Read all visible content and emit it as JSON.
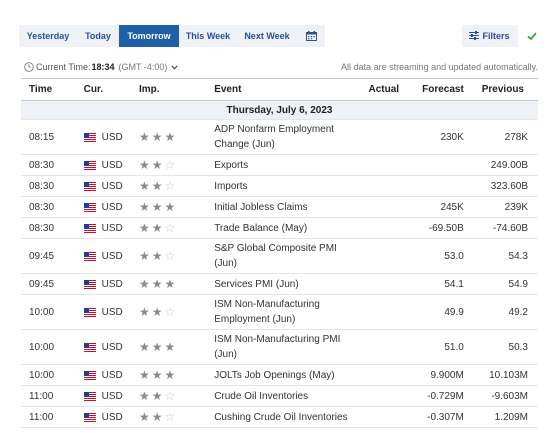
{
  "tabs": [
    {
      "label": "Yesterday",
      "active": false
    },
    {
      "label": "Today",
      "active": false
    },
    {
      "label": "Tomorrow",
      "active": true
    },
    {
      "label": "This Week",
      "active": false
    },
    {
      "label": "Next Week",
      "active": false
    }
  ],
  "calendar_icon": "calendar-icon",
  "filters_label": "Filters",
  "filters_icon": "sliders-icon",
  "check_icon": "checkmark-icon",
  "time_bar": {
    "label": "Current Time:",
    "value": "18:34",
    "timezone": "(GMT -4:00)",
    "streaming_note": "All data are streaming and updated automatically."
  },
  "columns": {
    "time": "Time",
    "cur": "Cur.",
    "imp": "Imp.",
    "event": "Event",
    "actual": "Actual",
    "forecast": "Forecast",
    "previous": "Previous"
  },
  "day_label": "Thursday, July 6, 2023",
  "colors": {
    "accent": "#1d5fa8",
    "tab_bg": "#eef1f5",
    "star_on": "#8a8a8a",
    "star_off": "#c8c8c8",
    "check": "#3aa83a"
  },
  "events": [
    {
      "time": "08:15",
      "currency": "USD",
      "importance": 3,
      "event": "ADP Nonfarm Employment Change (Jun)",
      "actual": "",
      "forecast": "230K",
      "previous": "278K",
      "double": true
    },
    {
      "time": "08:30",
      "currency": "USD",
      "importance": 2,
      "event": "Exports",
      "actual": "",
      "forecast": "",
      "previous": "249.00B",
      "double": false
    },
    {
      "time": "08:30",
      "currency": "USD",
      "importance": 2,
      "event": "Imports",
      "actual": "",
      "forecast": "",
      "previous": "323.60B",
      "double": false
    },
    {
      "time": "08:30",
      "currency": "USD",
      "importance": 3,
      "event": "Initial Jobless Claims",
      "actual": "",
      "forecast": "245K",
      "previous": "239K",
      "double": false
    },
    {
      "time": "08:30",
      "currency": "USD",
      "importance": 2,
      "event": "Trade Balance (May)",
      "actual": "",
      "forecast": "-69.50B",
      "previous": "-74.60B",
      "double": false
    },
    {
      "time": "09:45",
      "currency": "USD",
      "importance": 2,
      "event": "S&P Global Composite PMI (Jun)",
      "actual": "",
      "forecast": "53.0",
      "previous": "54.3",
      "double": true
    },
    {
      "time": "09:45",
      "currency": "USD",
      "importance": 3,
      "event": "Services PMI (Jun)",
      "actual": "",
      "forecast": "54.1",
      "previous": "54.9",
      "double": false
    },
    {
      "time": "10:00",
      "currency": "USD",
      "importance": 2,
      "event": "ISM Non-Manufacturing Employment (Jun)",
      "actual": "",
      "forecast": "49.9",
      "previous": "49.2",
      "double": true
    },
    {
      "time": "10:00",
      "currency": "USD",
      "importance": 3,
      "event": "ISM Non-Manufacturing PMI (Jun)",
      "actual": "",
      "forecast": "51.0",
      "previous": "50.3",
      "double": true
    },
    {
      "time": "10:00",
      "currency": "USD",
      "importance": 3,
      "event": "JOLTs Job Openings (May)",
      "actual": "",
      "forecast": "9.900M",
      "previous": "10.103M",
      "double": false
    },
    {
      "time": "11:00",
      "currency": "USD",
      "importance": 2,
      "event": "Crude Oil Inventories",
      "actual": "",
      "forecast": "-0.729M",
      "previous": "-9.603M",
      "double": false
    },
    {
      "time": "11:00",
      "currency": "USD",
      "importance": 2,
      "event": "Cushing Crude Oil Inventories",
      "actual": "",
      "forecast": "-0.307M",
      "previous": "1.209M",
      "double": false
    }
  ]
}
